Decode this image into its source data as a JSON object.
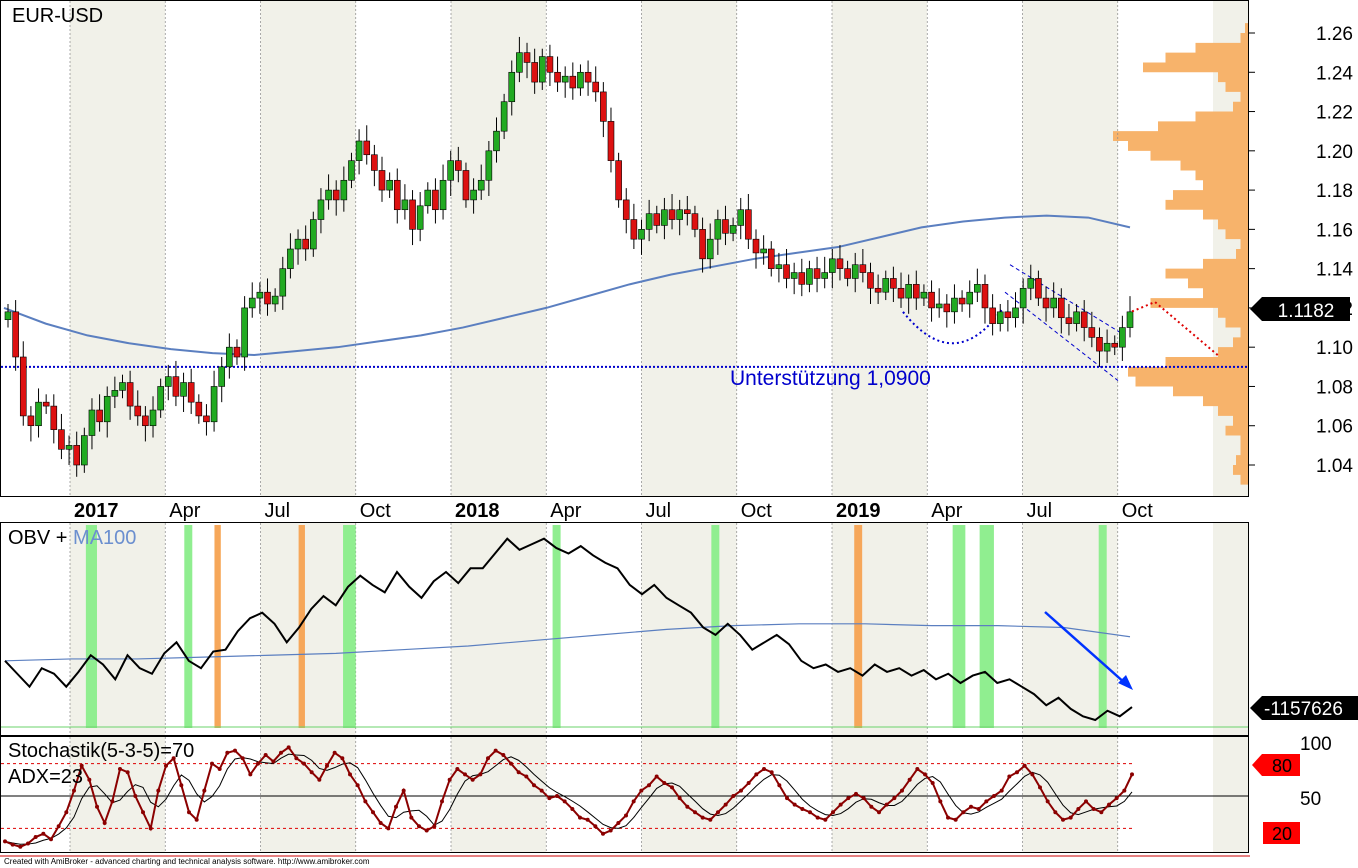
{
  "chart_data": [
    {
      "type": "candlestick",
      "title": "EUR-USD",
      "y_ticks": [
        "1.26",
        "1.24",
        "1.22",
        "1.20",
        "1.18",
        "1.16",
        "1.14",
        "1.12",
        "1.10",
        "1.08",
        "1.06",
        "1.04"
      ],
      "ylim": [
        1.03,
        1.265
      ],
      "x_ticks": [
        {
          "label": "2017",
          "month": 0,
          "bold": true
        },
        {
          "label": "Apr",
          "month": 3,
          "bold": false
        },
        {
          "label": "Jul",
          "month": 6,
          "bold": false
        },
        {
          "label": "Oct",
          "month": 9,
          "bold": false
        },
        {
          "label": "2018",
          "month": 12,
          "bold": true
        },
        {
          "label": "Apr",
          "month": 15,
          "bold": false
        },
        {
          "label": "Jul",
          "month": 18,
          "bold": false
        },
        {
          "label": "Oct",
          "month": 21,
          "bold": false
        },
        {
          "label": "2019",
          "month": 24,
          "bold": true
        },
        {
          "label": "Apr",
          "month": 27,
          "bold": false
        },
        {
          "label": "Jul",
          "month": 30,
          "bold": false
        },
        {
          "label": "Oct",
          "month": 33,
          "bold": false
        }
      ],
      "last_price": "1.1182",
      "support_level": 1.09,
      "support_label": "Unterstützung 1,0900",
      "closes": [
        1.118,
        1.095,
        1.065,
        1.06,
        1.072,
        1.07,
        1.058,
        1.048,
        1.05,
        1.04,
        1.055,
        1.068,
        1.062,
        1.075,
        1.078,
        1.082,
        1.07,
        1.065,
        1.06,
        1.068,
        1.08,
        1.085,
        1.075,
        1.082,
        1.072,
        1.065,
        1.062,
        1.08,
        1.09,
        1.1,
        1.095,
        1.12,
        1.125,
        1.128,
        1.122,
        1.126,
        1.14,
        1.15,
        1.155,
        1.15,
        1.165,
        1.175,
        1.18,
        1.175,
        1.185,
        1.195,
        1.205,
        1.198,
        1.19,
        1.18,
        1.185,
        1.17,
        1.175,
        1.16,
        1.172,
        1.18,
        1.17,
        1.185,
        1.195,
        1.19,
        1.175,
        1.18,
        1.185,
        1.2,
        1.21,
        1.225,
        1.24,
        1.25,
        1.245,
        1.235,
        1.248,
        1.24,
        1.235,
        1.238,
        1.232,
        1.24,
        1.235,
        1.23,
        1.215,
        1.195,
        1.175,
        1.165,
        1.155,
        1.16,
        1.168,
        1.162,
        1.17,
        1.165,
        1.17,
        1.168,
        1.16,
        1.145,
        1.155,
        1.165,
        1.158,
        1.162,
        1.17,
        1.155,
        1.148,
        1.15,
        1.14,
        1.142,
        1.135,
        1.138,
        1.132,
        1.14,
        1.135,
        1.138,
        1.145,
        1.14,
        1.135,
        1.142,
        1.138,
        1.13,
        1.128,
        1.135,
        1.13,
        1.125,
        1.132,
        1.125,
        1.128,
        1.12,
        1.122,
        1.118,
        1.125,
        1.122,
        1.128,
        1.132,
        1.12,
        1.112,
        1.118,
        1.115,
        1.12,
        1.13,
        1.135,
        1.125,
        1.12,
        1.125,
        1.115,
        1.112,
        1.118,
        1.11,
        1.105,
        1.098,
        1.102,
        1.1,
        1.11,
        1.118
      ],
      "ma": [
        1.12,
        1.112,
        1.106,
        1.102,
        1.099,
        1.097,
        1.096,
        1.098,
        1.1,
        1.103,
        1.106,
        1.11,
        1.115,
        1.12,
        1.126,
        1.132,
        1.137,
        1.141,
        1.145,
        1.148,
        1.151,
        1.156,
        1.161,
        1.164,
        1.166,
        1.167,
        1.166,
        1.161
      ],
      "dotted_projection": [
        [
          1.1182,
          1.123
        ],
        [
          1.123,
          1.095
        ]
      ],
      "volume_profile": [
        0.02,
        0.05,
        0.35,
        0.55,
        0.7,
        0.2,
        0.15,
        0.05,
        0.1,
        0.35,
        0.6,
        0.9,
        0.8,
        0.65,
        0.45,
        0.35,
        0.3,
        0.5,
        0.55,
        0.3,
        0.2,
        0.15,
        0.05,
        0.08,
        0.3,
        0.55,
        0.4,
        0.3,
        0.65,
        0.2,
        0.15,
        0.05,
        0.1,
        0.2,
        0.55,
        0.8,
        0.75,
        0.5,
        0.3,
        0.2,
        0.1,
        0.15,
        0.05,
        0.05,
        0.08,
        0.1,
        0.05
      ]
    },
    {
      "type": "line",
      "title": "OBV + ",
      "title_ma": "MA100",
      "last_value": "-1157626",
      "obv": [
        0.32,
        0.25,
        0.18,
        0.28,
        0.25,
        0.18,
        0.26,
        0.35,
        0.3,
        0.22,
        0.35,
        0.28,
        0.25,
        0.36,
        0.42,
        0.32,
        0.28,
        0.37,
        0.38,
        0.48,
        0.55,
        0.58,
        0.52,
        0.42,
        0.5,
        0.6,
        0.67,
        0.62,
        0.72,
        0.78,
        0.73,
        0.69,
        0.8,
        0.72,
        0.66,
        0.75,
        0.8,
        0.74,
        0.82,
        0.82,
        0.9,
        0.98,
        0.92,
        0.95,
        0.98,
        0.93,
        0.9,
        0.94,
        0.89,
        0.85,
        0.82,
        0.73,
        0.68,
        0.73,
        0.66,
        0.62,
        0.58,
        0.5,
        0.46,
        0.52,
        0.46,
        0.38,
        0.42,
        0.46,
        0.41,
        0.32,
        0.28,
        0.3,
        0.26,
        0.28,
        0.24,
        0.3,
        0.26,
        0.28,
        0.24,
        0.27,
        0.22,
        0.25,
        0.2,
        0.24,
        0.26,
        0.2,
        0.22,
        0.18,
        0.14,
        0.08,
        0.12,
        0.06,
        0.02,
        0.0,
        0.05,
        0.02,
        0.07
      ],
      "ma": [
        0.32,
        0.33,
        0.33,
        0.34,
        0.35,
        0.36,
        0.38,
        0.4,
        0.43,
        0.46,
        0.49,
        0.51,
        0.52,
        0.52,
        0.51,
        0.51,
        0.5,
        0.45
      ],
      "green_bands": [
        [
          0.5,
          0.85
        ],
        [
          3.6,
          3.85
        ],
        [
          8.6,
          9.0
        ],
        [
          15.2,
          15.45
        ],
        [
          20.2,
          20.45
        ],
        [
          27.8,
          28.2
        ],
        [
          28.65,
          29.1
        ],
        [
          32.4,
          32.65
        ]
      ],
      "orange_bands": [
        [
          4.55,
          4.75
        ],
        [
          7.2,
          7.4
        ],
        [
          24.7,
          24.95
        ]
      ]
    },
    {
      "type": "line",
      "title": "Stochastik(5-3-5)=70",
      "subtitle": "ADX=23",
      "y_ticks": [
        "100",
        "50"
      ],
      "upper_level": "80",
      "lower_level": "20",
      "stoch": [
        8,
        5,
        3,
        6,
        12,
        15,
        10,
        22,
        35,
        55,
        78,
        65,
        40,
        25,
        45,
        75,
        72,
        50,
        35,
        20,
        55,
        78,
        85,
        60,
        35,
        28,
        55,
        80,
        75,
        90,
        92,
        85,
        70,
        80,
        88,
        82,
        90,
        95,
        85,
        80,
        72,
        65,
        78,
        90,
        85,
        70,
        60,
        45,
        35,
        25,
        20,
        40,
        55,
        30,
        22,
        18,
        22,
        45,
        65,
        75,
        70,
        65,
        70,
        85,
        92,
        88,
        80,
        72,
        68,
        60,
        55,
        48,
        50,
        45,
        38,
        30,
        28,
        22,
        15,
        18,
        25,
        32,
        45,
        55,
        60,
        68,
        62,
        58,
        48,
        40,
        35,
        30,
        28,
        35,
        42,
        50,
        55,
        62,
        70,
        75,
        72,
        60,
        48,
        42,
        38,
        35,
        30,
        28,
        35,
        42,
        48,
        52,
        48,
        40,
        35,
        42,
        48,
        55,
        65,
        75,
        70,
        62,
        45,
        30,
        28,
        35,
        40,
        38,
        45,
        50,
        55,
        68,
        72,
        78,
        70,
        58,
        45,
        35,
        28,
        30,
        38,
        45,
        38,
        35,
        42,
        48,
        55,
        70
      ]
    }
  ],
  "footer_text": "Created with AmiBroker - advanced charting and technical analysis software. http://www.amibroker.com"
}
